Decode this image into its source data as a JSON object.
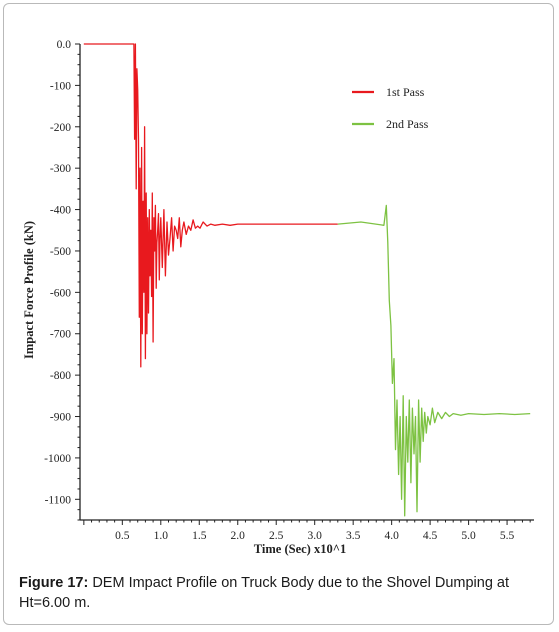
{
  "caption": {
    "label": "Figure 17:",
    "text": " DEM Impact Profile on Truck Body due to the Shovel Dumping at Ht=6.00 m."
  },
  "chart_data": {
    "type": "line",
    "title": "",
    "xlabel": "Time (Sec) x10^1",
    "ylabel": "Impact Force Profile (kN)",
    "xlim": [
      -0.05,
      5.85
    ],
    "ylim": [
      -1150,
      0
    ],
    "x_ticks": [
      0.5,
      1.0,
      1.5,
      2.0,
      2.5,
      3.0,
      3.5,
      4.0,
      4.5,
      5.0,
      5.5
    ],
    "x_tick_labels": [
      "0.5",
      "1.0",
      "1.5",
      "2.0",
      "2.5",
      "3.0",
      "3.5",
      "4.0",
      "4.5",
      "5.0",
      "5.5"
    ],
    "y_ticks": [
      0,
      -100,
      -200,
      -300,
      -400,
      -500,
      -600,
      -700,
      -800,
      -900,
      -1000,
      -1100
    ],
    "y_tick_labels": [
      "0.0",
      "-100",
      "-200",
      "-300",
      "-400",
      "-500",
      "-600",
      "-700",
      "-800",
      "-900",
      "-1000",
      "-1100"
    ],
    "legend_position": "top-right",
    "grid": false,
    "series": [
      {
        "name": "1st Pass",
        "color": "#e8191e",
        "x": [
          0.0,
          0.6,
          0.65,
          0.66,
          0.67,
          0.68,
          0.69,
          0.7,
          0.71,
          0.72,
          0.73,
          0.74,
          0.75,
          0.76,
          0.77,
          0.78,
          0.79,
          0.8,
          0.81,
          0.82,
          0.83,
          0.84,
          0.85,
          0.86,
          0.87,
          0.88,
          0.89,
          0.9,
          0.91,
          0.92,
          0.93,
          0.94,
          0.95,
          0.96,
          0.97,
          0.98,
          0.99,
          1.0,
          1.02,
          1.04,
          1.06,
          1.08,
          1.1,
          1.12,
          1.14,
          1.16,
          1.18,
          1.2,
          1.22,
          1.24,
          1.26,
          1.28,
          1.3,
          1.33,
          1.36,
          1.39,
          1.42,
          1.45,
          1.48,
          1.51,
          1.55,
          1.6,
          1.65,
          1.7,
          1.8,
          1.9,
          2.0,
          2.2,
          2.5,
          3.0,
          3.3
        ],
        "values": [
          0,
          0,
          0,
          -230,
          0,
          -350,
          -60,
          -110,
          -230,
          -660,
          -300,
          -780,
          -250,
          -700,
          -380,
          -600,
          -200,
          -760,
          -360,
          -700,
          -420,
          -650,
          -400,
          -560,
          -450,
          -610,
          -360,
          -720,
          -420,
          -500,
          -390,
          -590,
          -480,
          -450,
          -410,
          -570,
          -470,
          -420,
          -540,
          -400,
          -560,
          -430,
          -510,
          -470,
          -420,
          -500,
          -440,
          -450,
          -470,
          -420,
          -490,
          -450,
          -430,
          -460,
          -440,
          -450,
          -425,
          -445,
          -440,
          -445,
          -430,
          -440,
          -435,
          -438,
          -435,
          -438,
          -435,
          -435,
          -435,
          -435,
          -435
        ]
      },
      {
        "name": "2nd Pass",
        "color": "#7dc242",
        "x": [
          3.3,
          3.6,
          3.9,
          3.93,
          3.95,
          3.97,
          3.99,
          4.01,
          4.03,
          4.05,
          4.07,
          4.09,
          4.11,
          4.13,
          4.15,
          4.17,
          4.19,
          4.21,
          4.23,
          4.25,
          4.27,
          4.29,
          4.31,
          4.33,
          4.35,
          4.37,
          4.39,
          4.41,
          4.43,
          4.45,
          4.47,
          4.5,
          4.53,
          4.56,
          4.6,
          4.65,
          4.7,
          4.75,
          4.8,
          4.9,
          5.0,
          5.2,
          5.4,
          5.6,
          5.8
        ],
        "values": [
          -435,
          -430,
          -438,
          -390,
          -480,
          -620,
          -680,
          -820,
          -760,
          -980,
          -860,
          -1040,
          -900,
          -1100,
          -850,
          -1140,
          -900,
          -1010,
          -860,
          -1060,
          -880,
          -990,
          -900,
          -1130,
          -860,
          -1010,
          -880,
          -960,
          -890,
          -940,
          -900,
          -920,
          -880,
          -915,
          -890,
          -905,
          -890,
          -900,
          -893,
          -897,
          -893,
          -895,
          -893,
          -895,
          -893
        ]
      }
    ]
  }
}
